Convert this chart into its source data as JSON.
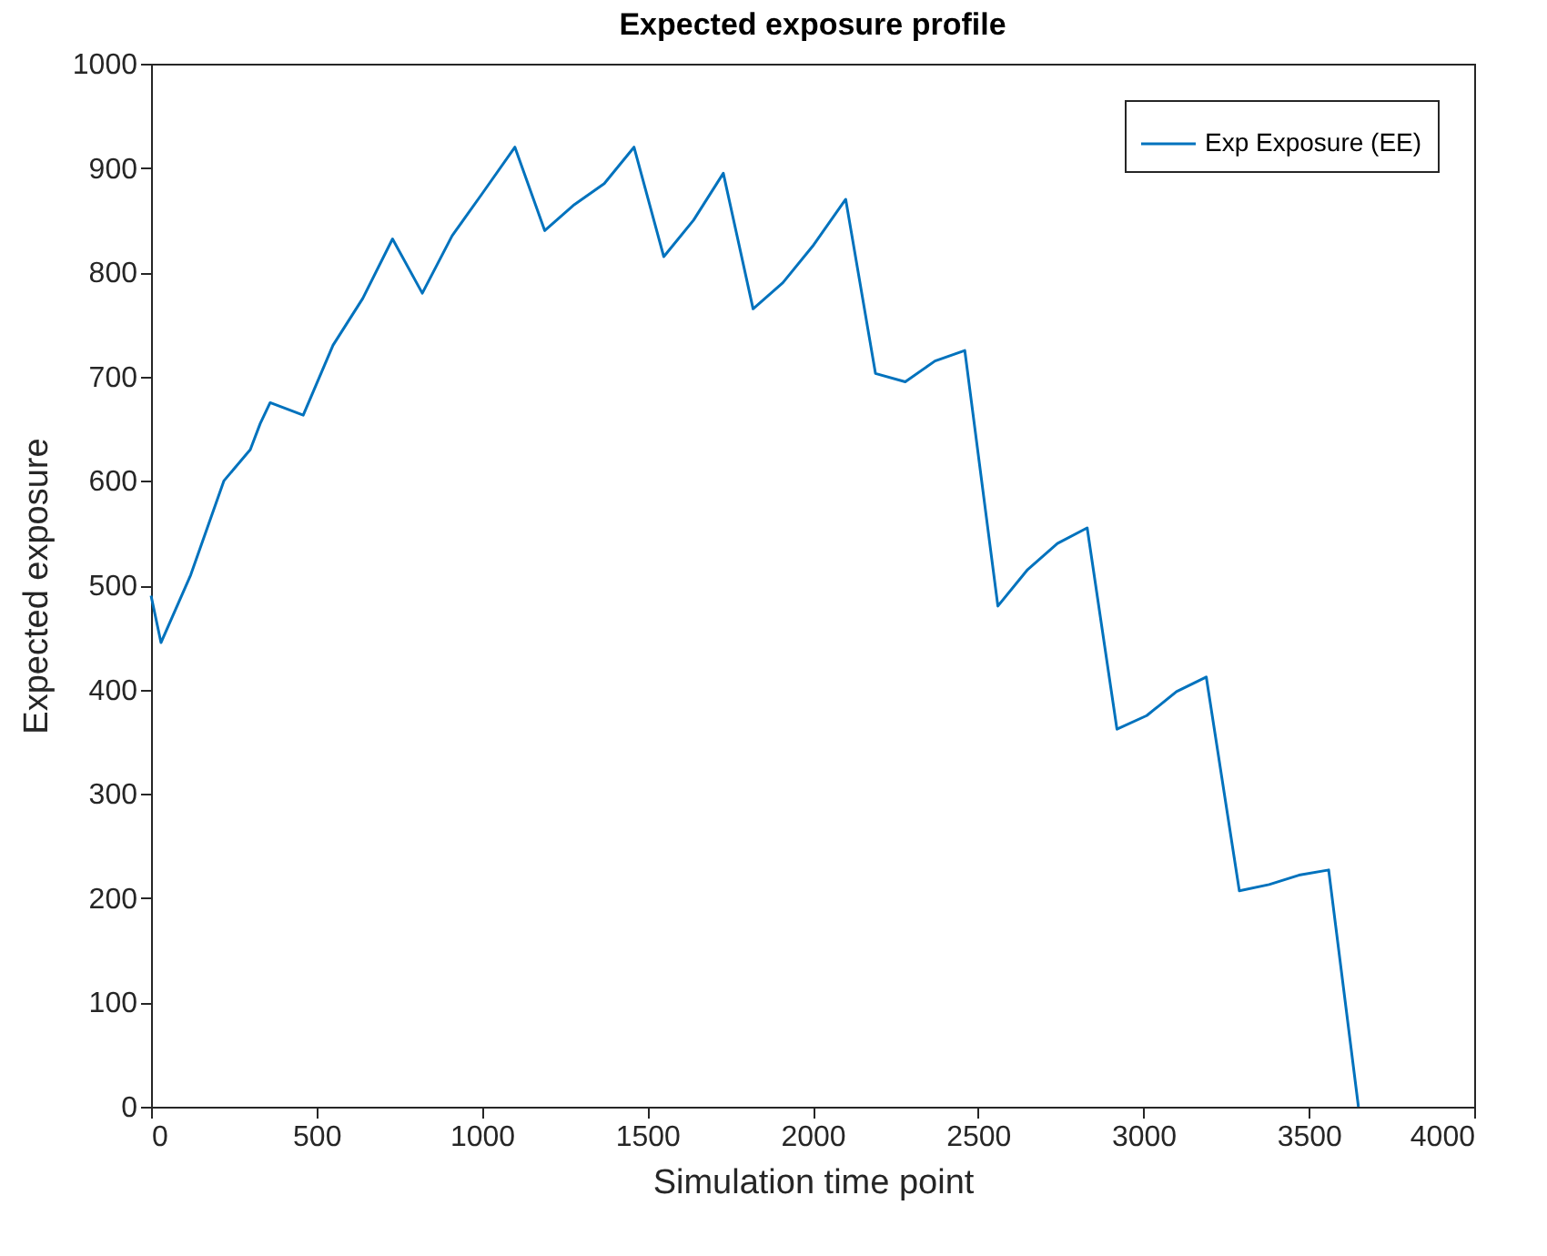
{
  "chart_data": {
    "type": "line",
    "title": "Expected exposure profile",
    "xlabel": "Simulation time point",
    "ylabel": "Expected exposure",
    "x": [
      0,
      30,
      120,
      220,
      300,
      330,
      360,
      460,
      550,
      640,
      730,
      820,
      910,
      1000,
      1100,
      1190,
      1280,
      1370,
      1460,
      1550,
      1640,
      1730,
      1820,
      1910,
      2000,
      2100,
      2190,
      2280,
      2370,
      2460,
      2560,
      2650,
      2740,
      2830,
      2920,
      3010,
      3100,
      3190,
      3290,
      3380,
      3470,
      3560,
      3650
    ],
    "series": [
      {
        "name": "Exp Exposure (EE)",
        "color": "#0072bd",
        "values": [
          490,
          445,
          510,
          600,
          630,
          655,
          675,
          663,
          730,
          775,
          832,
          780,
          835,
          875,
          920,
          840,
          865,
          885,
          920,
          815,
          850,
          895,
          765,
          790,
          825,
          870,
          703,
          695,
          715,
          725,
          480,
          515,
          540,
          555,
          362,
          375,
          398,
          412,
          207,
          213,
          222,
          227,
          0
        ]
      }
    ],
    "xlim": [
      0,
      4000
    ],
    "xticks": [
      0,
      500,
      1000,
      1500,
      2000,
      2500,
      3000,
      3500,
      4000
    ],
    "ylim": [
      0,
      1000
    ],
    "yticks": [
      0,
      100,
      200,
      300,
      400,
      500,
      600,
      700,
      800,
      900,
      1000
    ],
    "grid": false,
    "legend": "top right",
    "line_style": "solid"
  }
}
